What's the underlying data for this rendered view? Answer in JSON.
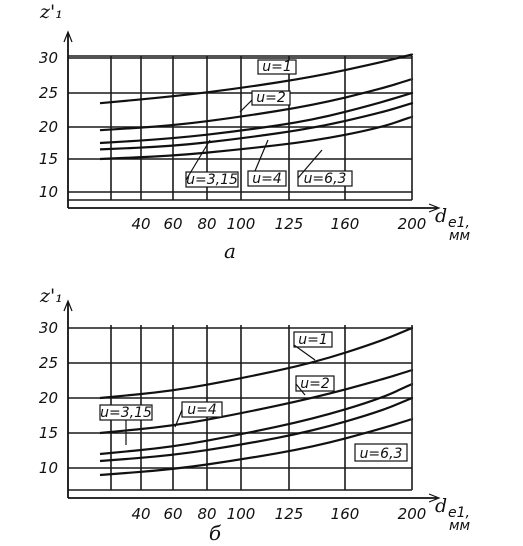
{
  "chart_data": [
    {
      "type": "line",
      "caption": "a",
      "ylabel": "z'₁",
      "xlabel_main": "d",
      "xlabel_sub": "e1,",
      "xlabel_unit": "мм",
      "x_ticks": [
        40,
        60,
        80,
        100,
        125,
        160,
        200
      ],
      "y_ticks": [
        10,
        15,
        20,
        25,
        30
      ],
      "ylim": [
        10,
        30
      ],
      "series": [
        {
          "name": "u=1",
          "x": [
            25,
            60,
            100,
            140,
            180,
            200
          ],
          "y": [
            23.5,
            24.5,
            25.7,
            27.3,
            29.3,
            30.5
          ]
        },
        {
          "name": "u=2",
          "x": [
            25,
            60,
            100,
            140,
            180,
            200
          ],
          "y": [
            19.5,
            20.2,
            21.5,
            23.2,
            25.5,
            27.0
          ]
        },
        {
          "name": "u=3,15",
          "x": [
            25,
            60,
            100,
            140,
            180,
            200
          ],
          "y": [
            17.5,
            18.2,
            19.4,
            21.0,
            23.5,
            25.0
          ]
        },
        {
          "name": "u=4",
          "x": [
            25,
            60,
            100,
            140,
            180,
            200
          ],
          "y": [
            16.5,
            17.0,
            18.2,
            19.8,
            22.0,
            23.5
          ]
        },
        {
          "name": "u=6,3",
          "x": [
            25,
            60,
            100,
            140,
            180,
            200
          ],
          "y": [
            15.0,
            15.5,
            16.5,
            17.8,
            19.8,
            21.5
          ]
        }
      ]
    },
    {
      "type": "line",
      "caption": "б",
      "ylabel": "z'₁",
      "xlabel_main": "d",
      "xlabel_sub": "e1,",
      "xlabel_unit": "мм",
      "x_ticks": [
        40,
        60,
        80,
        100,
        125,
        160,
        200
      ],
      "y_ticks": [
        10,
        15,
        20,
        25,
        30
      ],
      "ylim": [
        8,
        30
      ],
      "series": [
        {
          "name": "u=1",
          "x": [
            25,
            60,
            100,
            140,
            180,
            200
          ],
          "y": [
            20.0,
            21.0,
            22.8,
            25.0,
            28.0,
            30.0
          ]
        },
        {
          "name": "u=2",
          "x": [
            25,
            60,
            100,
            140,
            180,
            200
          ],
          "y": [
            15.0,
            16.0,
            17.8,
            20.0,
            22.5,
            24.0
          ]
        },
        {
          "name": "u=3,15",
          "x": [
            25,
            60,
            100,
            140,
            180,
            200
          ],
          "y": [
            12.0,
            13.0,
            14.8,
            17.0,
            19.8,
            22.0
          ]
        },
        {
          "name": "u=4",
          "x": [
            25,
            60,
            100,
            140,
            180,
            200
          ],
          "y": [
            11.0,
            11.8,
            13.3,
            15.3,
            18.0,
            20.0
          ]
        },
        {
          "name": "u=6,3",
          "x": [
            25,
            60,
            100,
            140,
            180,
            200
          ],
          "y": [
            9.0,
            9.8,
            11.2,
            13.0,
            15.5,
            17.0
          ]
        }
      ]
    }
  ]
}
